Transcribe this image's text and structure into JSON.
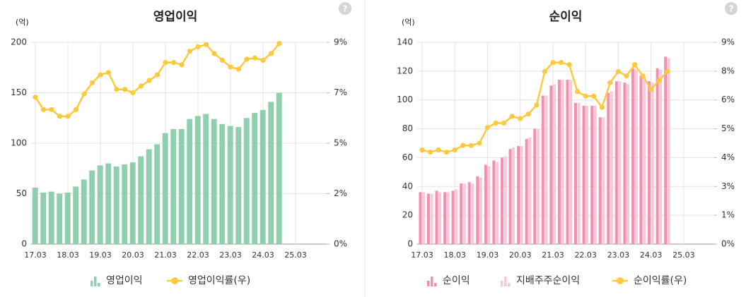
{
  "chart_data": [
    {
      "type": "bar-line",
      "title": "영업이익",
      "y_unit": "(억)",
      "help": "?",
      "categories": [
        "17.03",
        null,
        null,
        null,
        "18.03",
        null,
        null,
        null,
        "19.03",
        null,
        null,
        null,
        "20.03",
        null,
        null,
        null,
        "21.03",
        null,
        null,
        null,
        "22.03",
        null,
        null,
        null,
        "23.03",
        null,
        null,
        null,
        "24.03",
        null,
        null,
        null,
        "25.03"
      ],
      "ylim": [
        0,
        200
      ],
      "yticks": [
        0,
        50,
        100,
        150,
        200
      ],
      "y2lim": [
        0,
        9
      ],
      "y2ticks": [
        {
          "value": 0,
          "label": "0%"
        },
        {
          "value": 2.25,
          "label": "2%"
        },
        {
          "value": 4.5,
          "label": "5%"
        },
        {
          "value": 6.75,
          "label": "7%"
        },
        {
          "value": 9,
          "label": "9%"
        }
      ],
      "grid": true,
      "series": [
        {
          "name": "영업이익",
          "kind": "bar",
          "color": "#8fcfad",
          "values": [
            56,
            51,
            52,
            50,
            51,
            57,
            64,
            73,
            78,
            80,
            77,
            79,
            81,
            87,
            94,
            99,
            110,
            114,
            114,
            124,
            127,
            129,
            124,
            119,
            117,
            116,
            125,
            130,
            133,
            141,
            150,
            null,
            null
          ]
        },
        {
          "name": "영업이익률(우)",
          "kind": "line",
          "axis": "y2",
          "color": "#ffc93f",
          "values": [
            6.55,
            6.0,
            6.0,
            5.7,
            5.7,
            6.0,
            6.7,
            7.2,
            7.55,
            7.65,
            6.9,
            6.9,
            6.75,
            7.05,
            7.3,
            7.55,
            8.1,
            8.1,
            8.0,
            8.6,
            8.8,
            8.9,
            8.5,
            8.2,
            7.9,
            7.8,
            8.25,
            8.3,
            8.2,
            8.5,
            8.95,
            null,
            null
          ]
        }
      ]
    },
    {
      "type": "bar-line",
      "title": "순이익",
      "y_unit": "(억)",
      "help": "?",
      "categories": [
        "17.03",
        null,
        null,
        null,
        "18.03",
        null,
        null,
        null,
        "19.03",
        null,
        null,
        null,
        "20.03",
        null,
        null,
        null,
        "21.03",
        null,
        null,
        null,
        "22.03",
        null,
        null,
        null,
        "23.03",
        null,
        null,
        null,
        "24.03",
        null,
        null,
        null,
        "25.03"
      ],
      "ylim": [
        0,
        140
      ],
      "yticks": [
        0,
        20,
        40,
        60,
        80,
        100,
        120,
        140
      ],
      "y2lim": [
        0,
        9
      ],
      "y2ticks": [
        {
          "value": 0,
          "label": "0%"
        },
        {
          "value": 1.286,
          "label": "1%"
        },
        {
          "value": 2.571,
          "label": "3%"
        },
        {
          "value": 3.857,
          "label": "4%"
        },
        {
          "value": 5.143,
          "label": "5%"
        },
        {
          "value": 6.429,
          "label": "6%"
        },
        {
          "value": 7.714,
          "label": "8%"
        },
        {
          "value": 9,
          "label": "9%"
        }
      ],
      "grid": true,
      "series": [
        {
          "name": "순이익",
          "kind": "bar",
          "color": "#f48fb0",
          "values": [
            36,
            35,
            37,
            36,
            37,
            42,
            43,
            47,
            55,
            58,
            60,
            66,
            68,
            73,
            80,
            103,
            110,
            114,
            114,
            98,
            96,
            96,
            88,
            105,
            113,
            112,
            122,
            117,
            113,
            122,
            130,
            null,
            null
          ]
        },
        {
          "name": "지배주주순이익",
          "kind": "bar",
          "color": "#f9c9d9",
          "values": [
            36,
            35,
            36,
            36,
            38,
            42,
            42,
            46,
            54,
            57,
            61,
            67,
            68,
            74,
            80,
            103,
            111,
            114,
            114,
            98,
            96,
            96,
            88,
            106,
            113,
            111,
            121,
            116,
            112,
            121,
            129,
            null,
            null
          ]
        },
        {
          "name": "순이익률(우)",
          "kind": "line",
          "axis": "y2",
          "color": "#ffc93f",
          "values": [
            4.2,
            4.1,
            4.2,
            4.1,
            4.2,
            4.4,
            4.4,
            4.5,
            5.2,
            5.4,
            5.4,
            5.7,
            5.6,
            5.8,
            6.2,
            7.7,
            8.1,
            8.1,
            8.0,
            6.8,
            6.6,
            6.6,
            6.1,
            7.2,
            7.7,
            7.5,
            8.0,
            7.5,
            6.9,
            7.3,
            7.7,
            null,
            null
          ]
        }
      ]
    }
  ]
}
